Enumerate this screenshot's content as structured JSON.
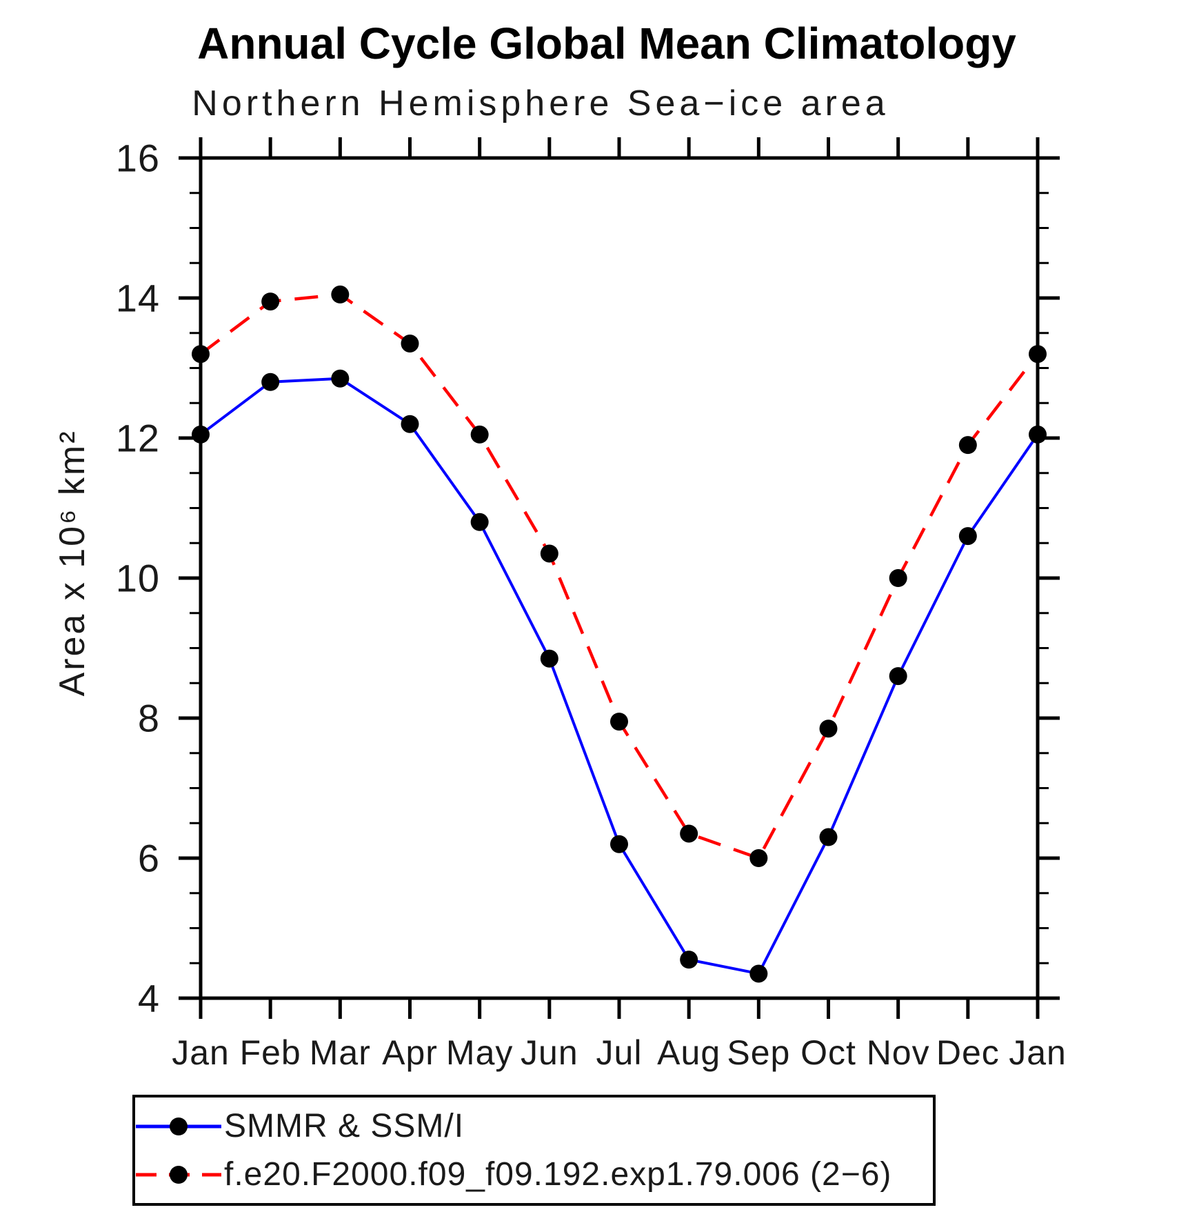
{
  "chart_data": {
    "type": "line",
    "title": "Annual Cycle Global Mean Climatology",
    "subtitle": "Northern Hemisphere Sea−ice area",
    "x_categories": [
      "Jan",
      "Feb",
      "Mar",
      "Apr",
      "May",
      "Jun",
      "Jul",
      "Aug",
      "Sep",
      "Oct",
      "Nov",
      "Dec",
      "Jan"
    ],
    "ylabel": "Area x 10⁶ km²",
    "ylim": [
      4,
      16
    ],
    "ytick_major": [
      16,
      14,
      12,
      10,
      8,
      6,
      4
    ],
    "ytick_minor_step": 0.5,
    "grid": false,
    "legend_position": "bottom-left-box",
    "axis_color": "#000000",
    "marker": "filled-circle",
    "marker_color": "#000000",
    "series": [
      {
        "name": "SMMR & SSM/I",
        "color": "#0000ff",
        "line_style": "solid",
        "values": [
          12.05,
          12.8,
          12.85,
          12.2,
          10.8,
          8.85,
          6.2,
          4.55,
          4.35,
          6.3,
          8.6,
          10.6,
          12.05
        ]
      },
      {
        "name": "f.e20.F2000.f09_f09.192.exp1.79.006 (2−6)",
        "color": "#ff0000",
        "line_style": "dashed",
        "values": [
          13.2,
          13.95,
          14.05,
          13.35,
          12.05,
          10.35,
          7.95,
          6.35,
          6.0,
          7.85,
          10.0,
          11.9,
          13.2
        ]
      }
    ]
  }
}
